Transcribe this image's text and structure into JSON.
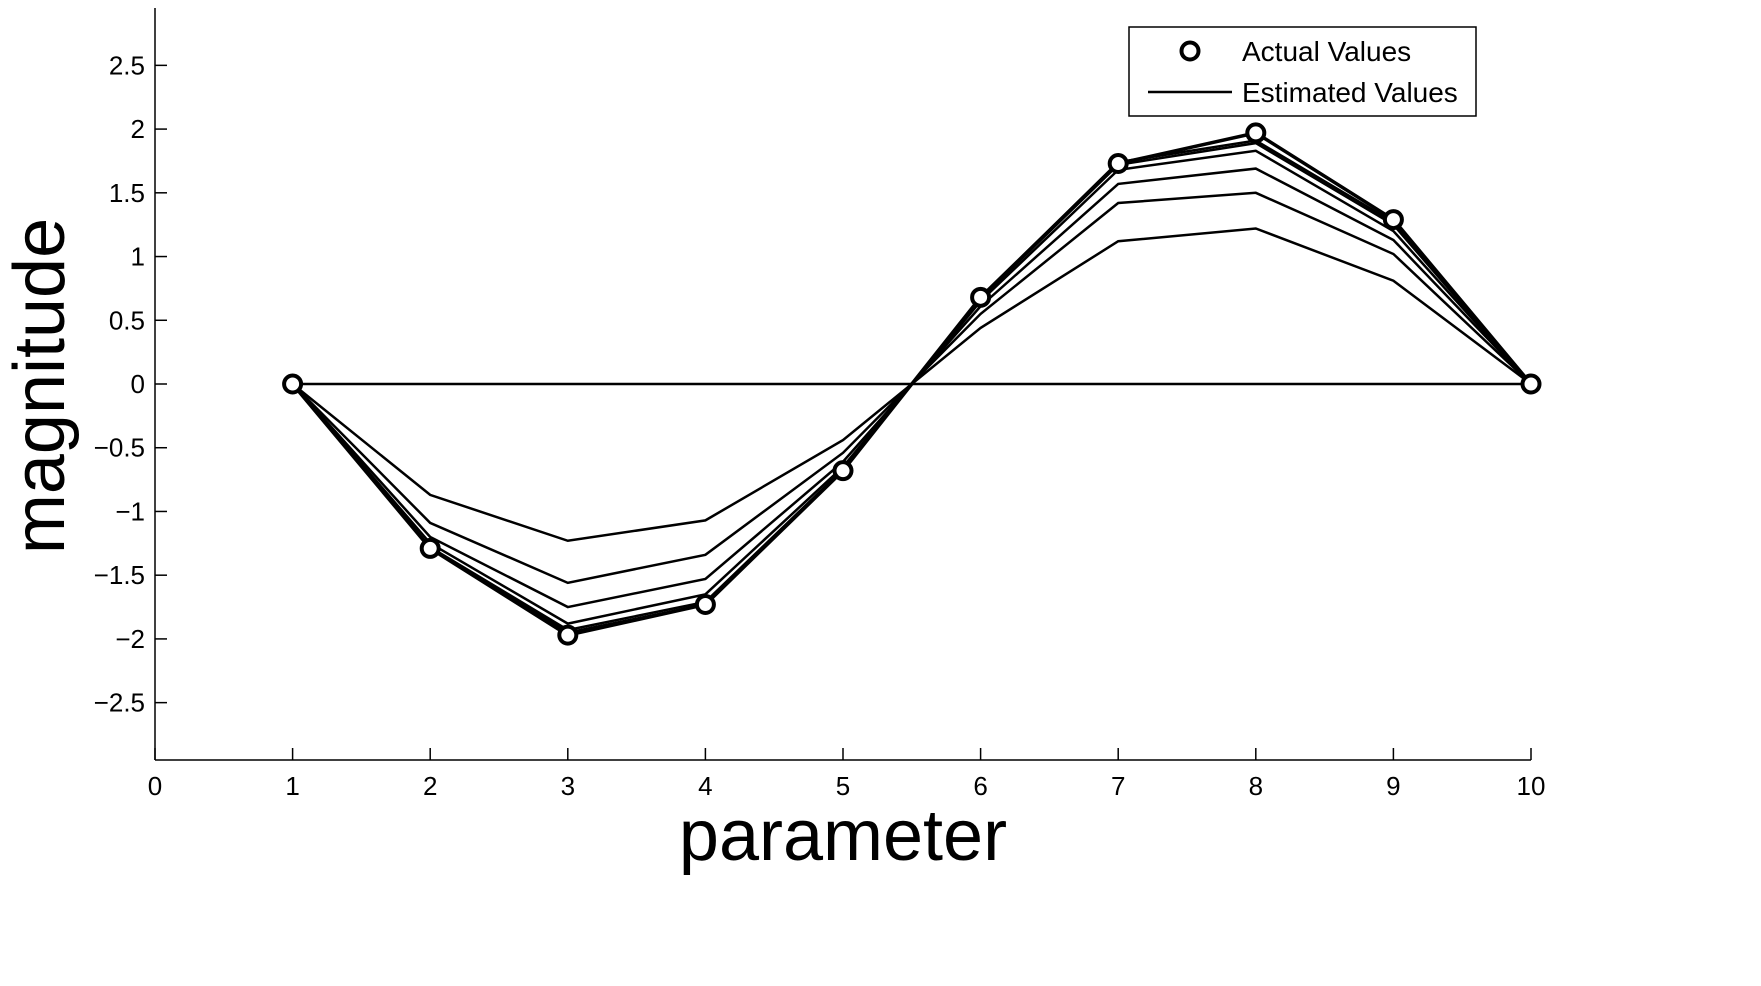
{
  "chart_data": {
    "type": "line",
    "title": "",
    "xlabel": "parameter",
    "ylabel": "magnitude",
    "xlim": [
      0,
      10
    ],
    "ylim": [
      -2.95,
      2.95
    ],
    "grid": false,
    "legend_position": "top-right",
    "x_ticks": [
      0,
      1,
      2,
      3,
      4,
      5,
      6,
      7,
      8,
      9,
      10
    ],
    "x_tick_labels": [
      "0",
      "1",
      "2",
      "3",
      "4",
      "5",
      "6",
      "7",
      "8",
      "9",
      "10"
    ],
    "y_ticks": [
      -2.5,
      -2,
      -1.5,
      -1,
      -0.5,
      0,
      0.5,
      1,
      1.5,
      2,
      2.5
    ],
    "y_tick_labels": [
      "−2.5",
      "−2",
      "−1.5",
      "−1",
      "−0.5",
      "0",
      "0.5",
      "1",
      "1.5",
      "2",
      "2.5"
    ],
    "x": [
      1,
      2,
      3,
      4,
      5,
      6,
      7,
      8,
      9,
      10
    ],
    "actual": {
      "name": "Actual Values",
      "marker": "open-circle",
      "values": [
        0,
        -1.29,
        -1.97,
        -1.73,
        -0.68,
        0.68,
        1.73,
        1.97,
        1.29,
        0
      ]
    },
    "estimated": {
      "name": "Estimated Values",
      "style": "solid",
      "curves": [
        [
          0,
          0,
          0,
          0,
          0,
          0,
          0,
          0,
          0,
          0
        ],
        [
          0,
          -0.87,
          -1.23,
          -1.07,
          -0.44,
          0.44,
          1.12,
          1.22,
          0.81,
          0
        ],
        [
          0,
          -1.09,
          -1.56,
          -1.34,
          -0.54,
          0.55,
          1.42,
          1.5,
          1.02,
          0
        ],
        [
          0,
          -1.2,
          -1.75,
          -1.53,
          -0.61,
          0.61,
          1.57,
          1.69,
          1.13,
          0
        ],
        [
          0,
          -1.25,
          -1.88,
          -1.65,
          -0.65,
          0.65,
          1.68,
          1.83,
          1.2,
          0
        ],
        [
          0,
          -1.28,
          -1.93,
          -1.71,
          -0.67,
          0.67,
          1.72,
          1.89,
          1.25,
          0
        ],
        [
          0,
          -1.29,
          -1.95,
          -1.73,
          -0.68,
          0.68,
          1.74,
          1.91,
          1.27,
          0
        ]
      ]
    }
  }
}
